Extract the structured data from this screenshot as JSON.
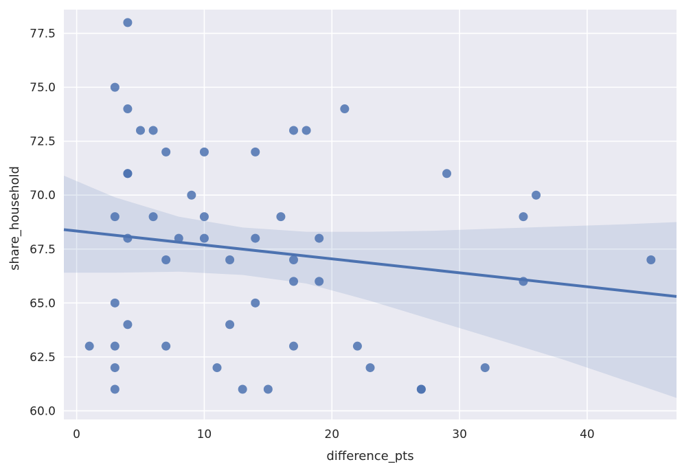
{
  "chart_data": {
    "type": "scatter",
    "title": "",
    "xlabel": "difference_pts",
    "ylabel": "share_household",
    "xlim": [
      -1,
      47
    ],
    "ylim": [
      59.6,
      78.6
    ],
    "grid": true,
    "legend": "none",
    "x_ticks": [
      0,
      10,
      20,
      30,
      40
    ],
    "x_tick_labels": [
      "0",
      "10",
      "20",
      "30",
      "40"
    ],
    "y_ticks": [
      60.0,
      62.5,
      65.0,
      67.5,
      70.0,
      72.5,
      75.0,
      77.5
    ],
    "y_tick_labels": [
      "60.0",
      "62.5",
      "65.0",
      "67.5",
      "70.0",
      "72.5",
      "75.0",
      "77.5"
    ],
    "points": [
      [
        4,
        78
      ],
      [
        3,
        75
      ],
      [
        4,
        74
      ],
      [
        5,
        73
      ],
      [
        6,
        73
      ],
      [
        7,
        72
      ],
      [
        10,
        72
      ],
      [
        14,
        72
      ],
      [
        17,
        73
      ],
      [
        18,
        73
      ],
      [
        21,
        74
      ],
      [
        4,
        71
      ],
      [
        4,
        71
      ],
      [
        9,
        70
      ],
      [
        3,
        69
      ],
      [
        6,
        69
      ],
      [
        10,
        69
      ],
      [
        16,
        69
      ],
      [
        4,
        68
      ],
      [
        8,
        68
      ],
      [
        10,
        68
      ],
      [
        14,
        68
      ],
      [
        19,
        68
      ],
      [
        7,
        67
      ],
      [
        12,
        67
      ],
      [
        17,
        67
      ],
      [
        17,
        66
      ],
      [
        19,
        66
      ],
      [
        3,
        65
      ],
      [
        14,
        65
      ],
      [
        4,
        64
      ],
      [
        12,
        64
      ],
      [
        1,
        63
      ],
      [
        3,
        63
      ],
      [
        7,
        63
      ],
      [
        17,
        63
      ],
      [
        22,
        63
      ],
      [
        3,
        62
      ],
      [
        11,
        62
      ],
      [
        23,
        62
      ],
      [
        32,
        62
      ],
      [
        3,
        61
      ],
      [
        13,
        61
      ],
      [
        15,
        61
      ],
      [
        27,
        61
      ],
      [
        27,
        61
      ],
      [
        29,
        71
      ],
      [
        36,
        70
      ],
      [
        35,
        69
      ],
      [
        35,
        66
      ],
      [
        45,
        67
      ]
    ],
    "regression_line": {
      "x": [
        -1,
        47
      ],
      "y": [
        68.4,
        65.3
      ]
    },
    "confidence_band": {
      "x": [
        -1,
        3,
        8,
        13,
        18,
        23,
        28,
        33,
        38,
        43,
        47
      ],
      "upper": [
        70.9,
        69.9,
        69.0,
        68.5,
        68.3,
        68.3,
        68.35,
        68.45,
        68.55,
        68.65,
        68.75
      ],
      "lower": [
        66.4,
        66.4,
        66.45,
        66.3,
        65.9,
        65.1,
        64.2,
        63.3,
        62.4,
        61.4,
        60.6
      ]
    },
    "colors": {
      "background": "#eaeaf2",
      "grid": "#ffffff",
      "points": "#4c72b0",
      "line": "#4c72b0",
      "band": "#4c72b0"
    }
  }
}
